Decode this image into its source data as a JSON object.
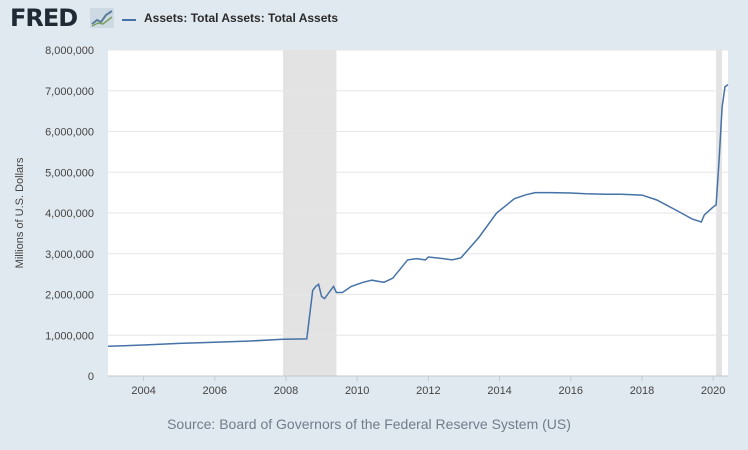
{
  "header": {
    "logo_text": "FRED",
    "logo_icon": "fred-graph-icon",
    "legend_label": "Assets: Total Assets: Total Assets",
    "legend_color": "#4572a7"
  },
  "source": "Source: Board of Governors of the Federal Reserve System (US)",
  "colors": {
    "page_background": "#e1e9f0",
    "plot_background": "#ffffff",
    "recession_shading": "#e3e3e3",
    "gridline": "#e6e6e6",
    "series": "#4572a7"
  },
  "chart_data": {
    "type": "line",
    "title": "",
    "xlabel": "",
    "ylabel": "Millions of U.S. Dollars",
    "xlim": [
      "2003-01",
      "2020-06"
    ],
    "ylim": [
      0,
      8000000
    ],
    "grid": true,
    "legend_position": "top-left",
    "x_ticks": [
      "2004",
      "2006",
      "2008",
      "2010",
      "2012",
      "2014",
      "2016",
      "2018",
      "2020"
    ],
    "y_ticks": [
      "0",
      "1,000,000",
      "2,000,000",
      "3,000,000",
      "4,000,000",
      "5,000,000",
      "6,000,000",
      "7,000,000",
      "8,000,000"
    ],
    "recession_bands": [
      {
        "start": "2007-12",
        "end": "2009-06"
      },
      {
        "start": "2020-02",
        "end": "2020-04"
      }
    ],
    "series": [
      {
        "name": "Assets: Total Assets: Total Assets",
        "x": [
          "2003-01",
          "2004-01",
          "2005-01",
          "2006-01",
          "2007-01",
          "2007-12",
          "2008-08",
          "2008-09",
          "2008-10",
          "2008-11",
          "2008-12",
          "2009-01",
          "2009-02",
          "2009-03",
          "2009-04",
          "2009-05",
          "2009-06",
          "2009-08",
          "2009-11",
          "2010-03",
          "2010-06",
          "2010-10",
          "2011-01",
          "2011-06",
          "2011-09",
          "2011-12",
          "2012-01",
          "2012-06",
          "2012-09",
          "2012-12",
          "2013-06",
          "2013-12",
          "2014-06",
          "2014-10",
          "2015-01",
          "2015-06",
          "2016-01",
          "2016-06",
          "2017-01",
          "2017-06",
          "2018-01",
          "2018-06",
          "2019-01",
          "2019-06",
          "2019-09",
          "2019-10",
          "2020-01",
          "2020-02",
          "2020-03",
          "2020-04",
          "2020-05",
          "2020-06"
        ],
        "values": [
          730000,
          760000,
          800000,
          830000,
          860000,
          900000,
          910000,
          1500000,
          2100000,
          2200000,
          2250000,
          1950000,
          1900000,
          2000000,
          2100000,
          2200000,
          2050000,
          2050000,
          2200000,
          2300000,
          2350000,
          2300000,
          2400000,
          2850000,
          2880000,
          2850000,
          2920000,
          2880000,
          2850000,
          2900000,
          3400000,
          4000000,
          4350000,
          4450000,
          4500000,
          4500000,
          4490000,
          4470000,
          4460000,
          4460000,
          4440000,
          4320000,
          4050000,
          3850000,
          3780000,
          3950000,
          4150000,
          4200000,
          5300000,
          6600000,
          7100000,
          7150000
        ]
      }
    ]
  }
}
